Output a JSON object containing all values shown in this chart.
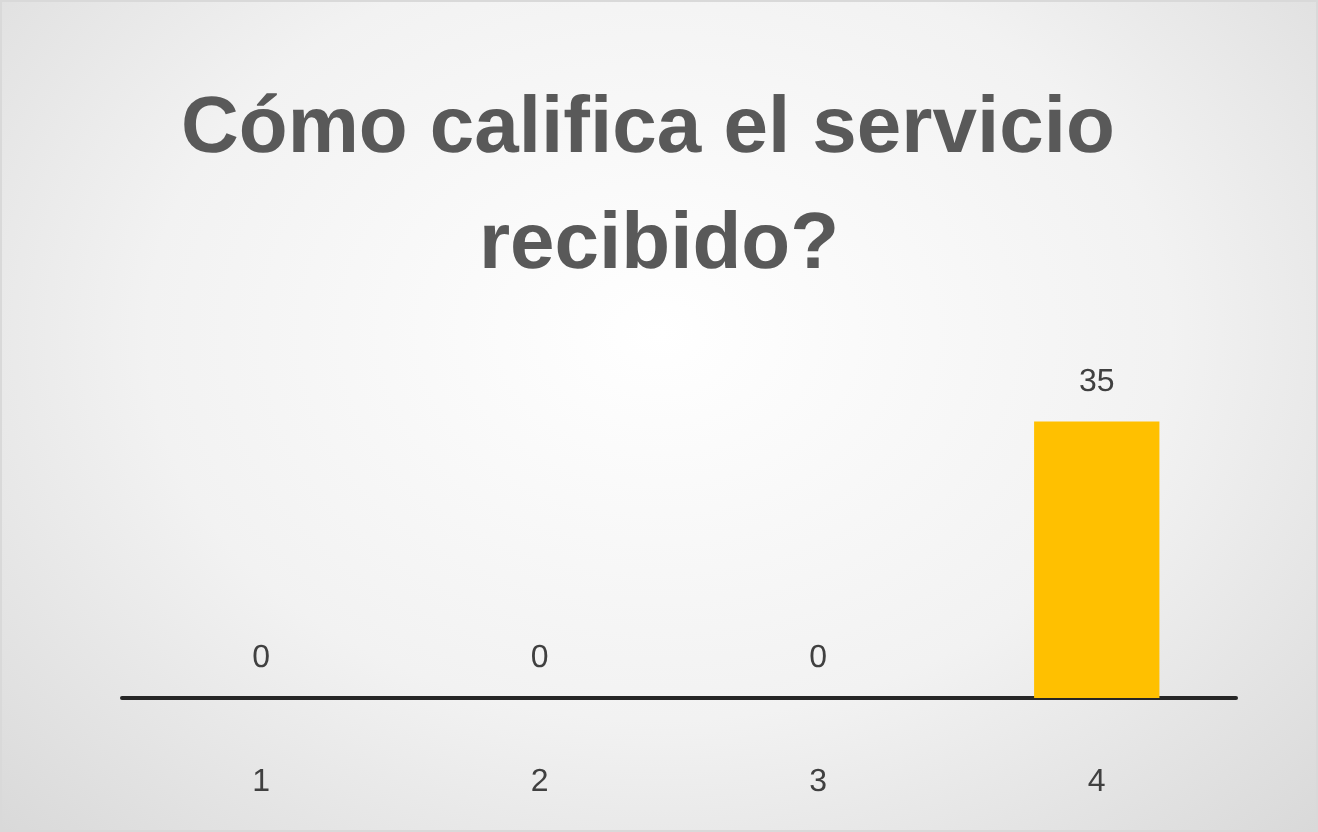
{
  "chart_data": {
    "type": "bar",
    "title": "Cómo califica el servicio recibido?",
    "categories": [
      "1",
      "2",
      "3",
      "4"
    ],
    "values": [
      0,
      0,
      0,
      35
    ],
    "colors": [
      "#4472c4",
      "#ed7d31",
      "#a5a5a5",
      "#ffc000"
    ],
    "data_labels": true
  }
}
